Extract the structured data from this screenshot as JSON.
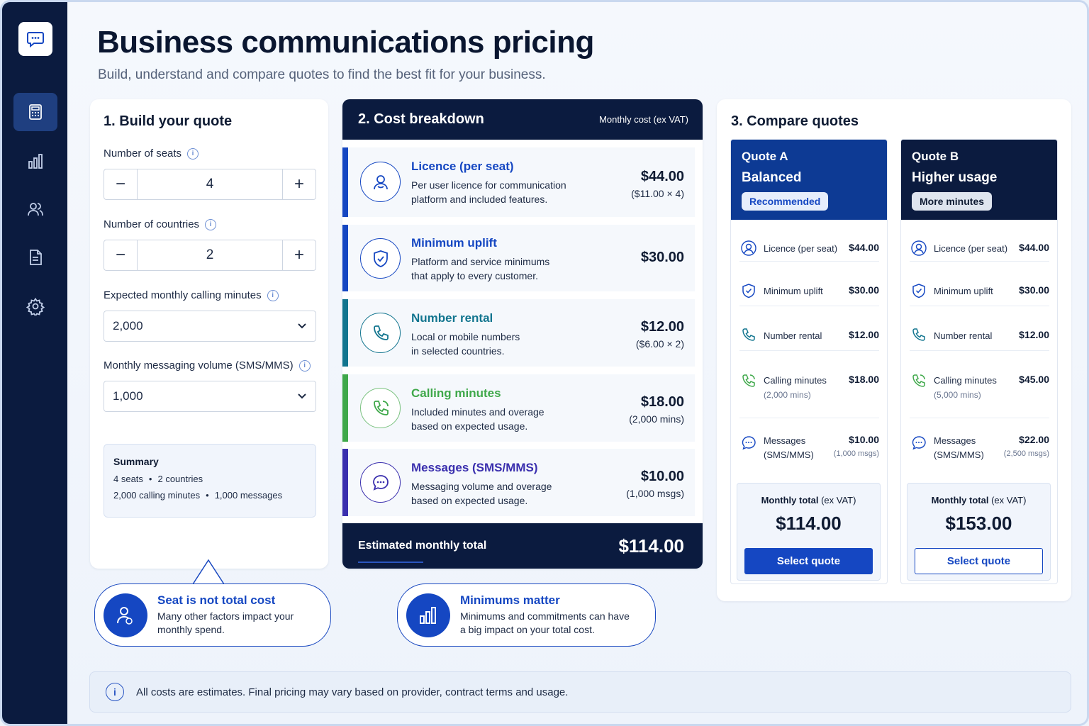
{
  "header": {
    "title": "Business communications pricing",
    "subtitle": "Build, understand and compare quotes to find the best fit for your business."
  },
  "sidebar": {
    "items": [
      {
        "name": "calculator-icon",
        "active": true
      },
      {
        "name": "bar-chart-icon",
        "active": false
      },
      {
        "name": "users-icon",
        "active": false
      },
      {
        "name": "document-icon",
        "active": false
      },
      {
        "name": "gear-icon",
        "active": false
      }
    ]
  },
  "build": {
    "title": "1.  Build your quote",
    "seats_label": "Number of seats",
    "seats_value": "4",
    "countries_label": "Number of countries",
    "countries_value": "2",
    "minutes_label": "Expected monthly calling minutes",
    "minutes_value": "2,000",
    "messages_label": "Monthly messaging volume (SMS/MMS)",
    "messages_value": "1,000",
    "minus": "−",
    "plus": "+",
    "summary": {
      "title": "Summary",
      "seats": "4 seats",
      "countries": "2 countries",
      "minutes": "2,000 calling minutes",
      "messages": "1,000 messages",
      "sep": "•"
    }
  },
  "callouts": [
    {
      "title": "Seat is not total cost",
      "body_1": "Many other factors impact your",
      "body_2": "monthly spend."
    },
    {
      "title": "Minimums matter",
      "body_1": "Minimums and commitments can have",
      "body_2": "a big impact on your total cost."
    }
  ],
  "breakdown": {
    "title": "2.  Cost breakdown",
    "subtitle": "Monthly cost (ex VAT)",
    "rows": [
      {
        "title": "Licence (per seat)",
        "desc_1": "Per user licence for communication",
        "desc_2": "platform and included features.",
        "amount": "$44.00",
        "note": "($11.00 × 4)",
        "color": "#1547c2"
      },
      {
        "title": "Minimum uplift",
        "desc_1": "Platform and service minimums",
        "desc_2": "that apply to every customer.",
        "amount": "$30.00",
        "note": "",
        "color": "#1547c2"
      },
      {
        "title": "Number rental",
        "desc_1": "Local or mobile numbers",
        "desc_2": "in selected countries.",
        "amount": "$12.00",
        "note": "($6.00 × 2)",
        "color": "#12758f"
      },
      {
        "title": "Calling minutes",
        "desc_1": "Included minutes and overage",
        "desc_2": "based on expected usage.",
        "amount": "$18.00",
        "note": "(2,000 mins)",
        "color": "#3fa84a"
      },
      {
        "title": "Messages (SMS/MMS)",
        "desc_1": "Messaging volume and overage",
        "desc_2": "based on expected usage.",
        "amount": "$10.00",
        "note": "(1,000 msgs)",
        "color": "#3a2fae"
      }
    ],
    "total_label": "Estimated monthly total",
    "total_amount": "$114.00"
  },
  "compare": {
    "title": "3.  Compare quotes",
    "quotes": [
      {
        "name": "Quote A",
        "tag": "Balanced",
        "badge": "Recommended",
        "rows": [
          {
            "label": "Licence (per seat)",
            "value": "$44.00"
          },
          {
            "label": "Minimum uplift",
            "value": "$30.00"
          },
          {
            "label": "Number rental",
            "value": "$12.00"
          },
          {
            "label": "Calling minutes",
            "sub": "(2,000 mins)",
            "value": "$18.00"
          },
          {
            "label": "Messages",
            "label_2": "(SMS/MMS)",
            "value": "$10.00",
            "value_sub": "(1,000 msgs)"
          }
        ],
        "total_label": "Monthly total",
        "total_suffix": " (ex VAT)",
        "total": "$114.00",
        "select": "Select quote"
      },
      {
        "name": "Quote B",
        "tag": "Higher usage",
        "badge": "More minutes",
        "rows": [
          {
            "label": "Licence (per seat)",
            "value": "$44.00"
          },
          {
            "label": "Minimum uplift",
            "value": "$30.00"
          },
          {
            "label": "Number rental",
            "value": "$12.00"
          },
          {
            "label": "Calling minutes",
            "sub": "(5,000 mins)",
            "value": "$45.00"
          },
          {
            "label": "Messages",
            "label_2": "(SMS/MMS)",
            "value": "$22.00",
            "value_sub": "(2,500 msgs)"
          }
        ],
        "total_label": "Monthly total",
        "total_suffix": " (ex VAT)",
        "total": "$153.00",
        "select": "Select quote"
      }
    ]
  },
  "footer": {
    "info": "All costs are estimates. Final pricing may vary based on provider, contract terms and usage.",
    "icon": "i"
  },
  "colors": {
    "navy": "#0b1b3f",
    "primary": "#1547c2",
    "quote_a_head": "#0d3a94",
    "quote_b_head": "#0b1b3f"
  }
}
